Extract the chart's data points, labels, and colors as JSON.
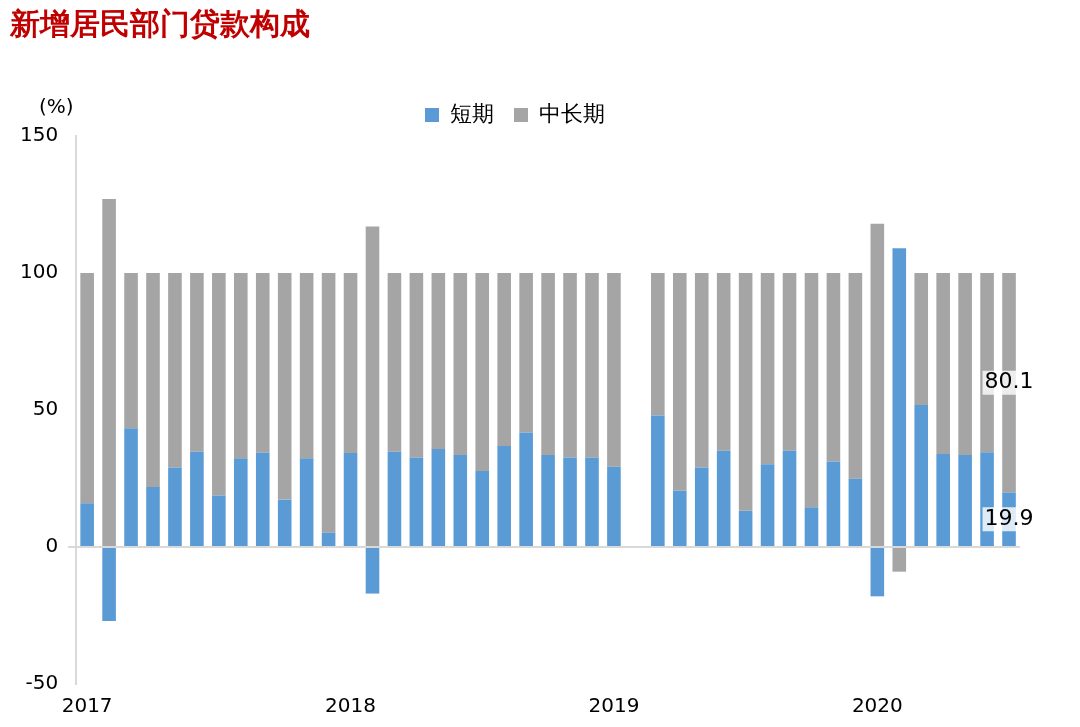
{
  "chart_data": {
    "type": "bar",
    "title": "新增居民部门贷款构成",
    "ylabel": "(%)",
    "stacked": true,
    "legend": "top",
    "ylim": [
      -50,
      150
    ],
    "yticks": [
      -50,
      0,
      50,
      100,
      150
    ],
    "categories": [
      "2017",
      null,
      null,
      null,
      null,
      null,
      null,
      null,
      null,
      null,
      null,
      null,
      "2018",
      null,
      null,
      null,
      null,
      null,
      null,
      null,
      null,
      null,
      null,
      null,
      "2019",
      null,
      null,
      null,
      null,
      null,
      null,
      null,
      null,
      null,
      null,
      null,
      "2020",
      null,
      null,
      null,
      null,
      null,
      null
    ],
    "series": [
      {
        "name": "短期",
        "color": "#5b9bd5",
        "values": [
          16,
          -27,
          43.3,
          21.9,
          29,
          34.8,
          18.8,
          32.4,
          34.4,
          17.3,
          32.4,
          5.2,
          34.3,
          -17,
          34.8,
          32.7,
          35.8,
          33.6,
          27.7,
          36.9,
          41.8,
          33.6,
          32.7,
          32.7,
          29.3,
          null,
          48,
          20.5,
          29,
          35.1,
          13.2,
          30.2,
          35.1,
          14.5,
          31.2,
          24.9,
          -18,
          109,
          51.8,
          33.9,
          33.6,
          34.6,
          19.9
        ],
        "value_labels": [
          null,
          null,
          null,
          null,
          null,
          null,
          null,
          null,
          null,
          null,
          null,
          null,
          null,
          null,
          null,
          null,
          null,
          null,
          null,
          null,
          null,
          null,
          null,
          null,
          null,
          null,
          null,
          null,
          null,
          null,
          null,
          null,
          null,
          null,
          null,
          null,
          null,
          null,
          null,
          null,
          null,
          null,
          "19.9"
        ]
      },
      {
        "name": "中长期",
        "color": "#a5a5a5",
        "values": [
          84,
          127,
          56.7,
          78.1,
          71,
          65.2,
          81.2,
          67.6,
          65.6,
          82.7,
          67.6,
          94.8,
          65.7,
          117,
          65.2,
          67.3,
          64.2,
          66.4,
          72.3,
          63.1,
          58.2,
          66.4,
          67.3,
          67.3,
          70.7,
          null,
          52,
          79.5,
          71,
          64.9,
          86.8,
          69.8,
          64.9,
          85.5,
          68.8,
          75.1,
          118,
          -9,
          48.2,
          66.1,
          66.4,
          65.4,
          80.1
        ],
        "value_labels": [
          null,
          null,
          null,
          null,
          null,
          null,
          null,
          null,
          null,
          null,
          null,
          null,
          null,
          null,
          null,
          null,
          null,
          null,
          null,
          null,
          null,
          null,
          null,
          null,
          null,
          null,
          null,
          null,
          null,
          null,
          null,
          null,
          null,
          null,
          null,
          null,
          null,
          null,
          null,
          null,
          null,
          null,
          "80.1"
        ]
      }
    ]
  }
}
